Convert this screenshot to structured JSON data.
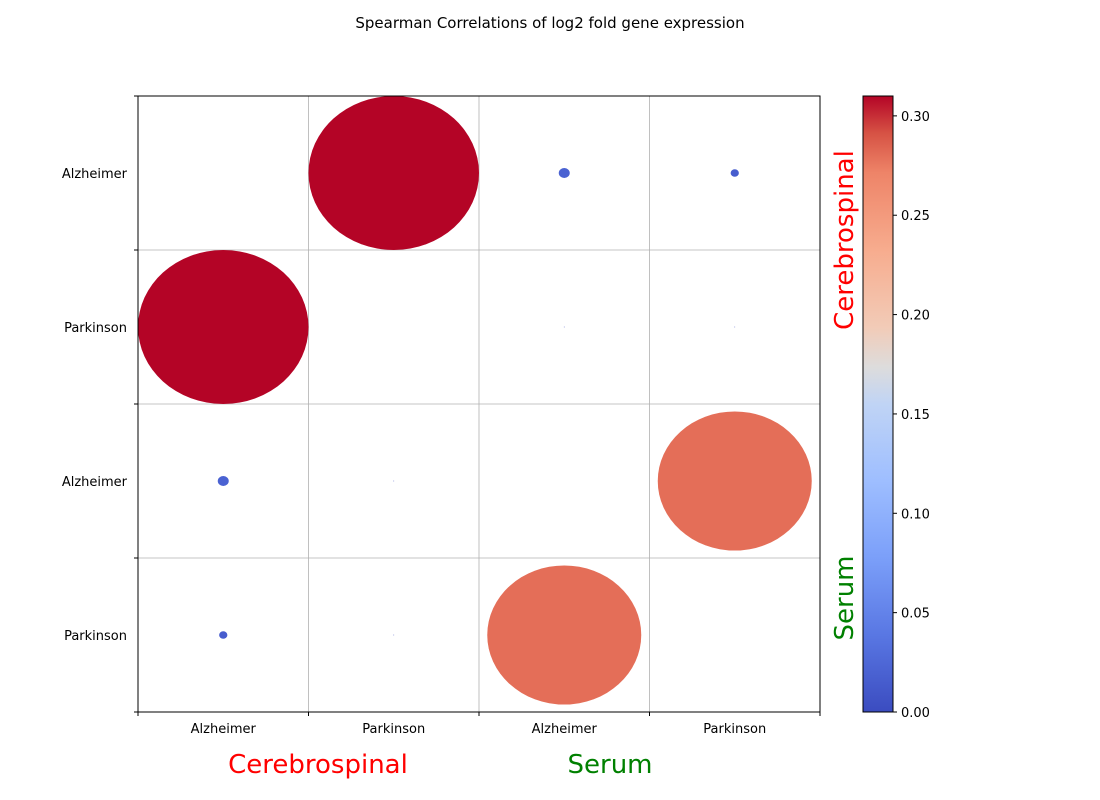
{
  "chart_data": {
    "type": "bubble-heatmap",
    "title": "Spearman Correlations of log2 fold gene expression",
    "row_labels": [
      "Alzheimer",
      "Parkinson",
      "Alzheimer",
      "Parkinson"
    ],
    "col_labels": [
      "Alzheimer",
      "Parkinson",
      "Alzheimer",
      "Parkinson"
    ],
    "x_groups": [
      {
        "label": "Cerebrospinal",
        "color": "#ff0000"
      },
      {
        "label": "Serum",
        "color": "#008000"
      }
    ],
    "y_groups": [
      {
        "label": "Cerebrospinal",
        "color": "#ff0000"
      },
      {
        "label": "Serum",
        "color": "#008000"
      }
    ],
    "values": [
      [
        null,
        0.31,
        0.02,
        0.015
      ],
      [
        0.31,
        null,
        0.001,
        0.0005
      ],
      [
        0.02,
        0.001,
        null,
        0.28
      ],
      [
        0.015,
        0.0005,
        0.28,
        null
      ]
    ],
    "colorbar": {
      "min": 0.0,
      "max": 0.31,
      "ticks": [
        "0.00",
        "0.05",
        "0.10",
        "0.15",
        "0.20",
        "0.25",
        "0.30"
      ],
      "colormap": "coolwarm"
    },
    "grid": true
  }
}
